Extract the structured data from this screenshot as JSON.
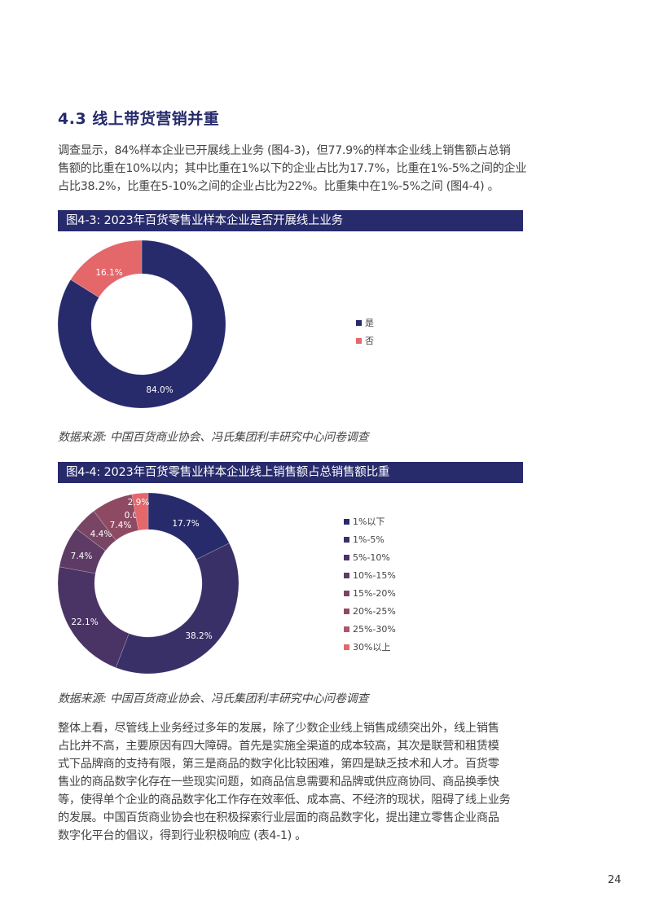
{
  "section": {
    "title": "4.3 线上带货营销并重",
    "intro_lines": [
      "调查显示，84%样本企业已开展线上业务 (图4-3)，但77.9%的样本企业线上销售额占总销",
      "售额的比重在10%以内；其中比重在1%以下的企业占比为17.7%，比重在1%-5%之间的企业",
      "占比38.2%，比重在5-10%之间的企业占比为22%。比重集中在1%-5%之间 (图4-4) 。"
    ],
    "body_lines": [
      "整体上看，尽管线上业务经过多年的发展，除了少数企业线上销售成绩突出外，线上销售",
      "占比并不高，主要原因有四大障碍。首先是实施全渠道的成本较高，其次是联营和租赁模",
      "式下品牌商的支持有限，第三是商品的数字化比较困难，第四是缺乏技术和人才。百货零",
      "售业的商品数字化存在一些现实问题，如商品信息需要和品牌或供应商协同、商品换季快",
      "等，使得单个企业的商品数字化工作存在效率低、成本高、不经济的现状，阻碍了线上业务",
      "的发展。中国百货商业协会也在积极探索行业层面的商品数字化，提出建立零售企业商品",
      "数字化平台的倡议，得到行业积极响应 (表4-1) 。"
    ]
  },
  "figures": [
    {
      "caption": "图4-3: 2023年百货零售业样本企业是否开展线上业务",
      "source": "数据来源: 中国百货商业协会、冯氏集团利丰研究中心问卷调查"
    },
    {
      "caption": "图4-4: 2023年百货零售业样本企业线上销售额占总销售额比重",
      "source": "数据来源: 中国百货商业协会、冯氏集团利丰研究中心问卷调查"
    }
  ],
  "chart_data": [
    {
      "type": "pie",
      "variant": "donut",
      "title": "图4-3: 2023年百货零售业样本企业是否开展线上业务",
      "categories": [
        "是",
        "否"
      ],
      "values": [
        84.0,
        16.1
      ],
      "labels": [
        "84.0%",
        "16.1%"
      ],
      "colors": [
        "#272a6b",
        "#e4676a"
      ],
      "legend_position": "right",
      "start_angle": "12 o'clock, clockwise"
    },
    {
      "type": "pie",
      "variant": "donut",
      "title": "图4-4: 2023年百货零售业样本企业线上销售额占总销售额比重",
      "categories": [
        "1%以下",
        "1%-5%",
        "5%-10%",
        "10%-15%",
        "15%-20%",
        "20%-25%",
        "25%-30%",
        "30%以上"
      ],
      "values": [
        17.7,
        38.2,
        22.1,
        7.4,
        4.4,
        7.4,
        0.0,
        2.9
      ],
      "labels": [
        "17.7%",
        "38.2%",
        "22.1%",
        "7.4%",
        "4.4%",
        "7.4%",
        "0.0%",
        "2.9%"
      ],
      "colors": [
        "#272a6b",
        "#3a3068",
        "#4a3365",
        "#5e3b65",
        "#784565",
        "#8f4a63",
        "#b0556a",
        "#e4676a"
      ],
      "legend_position": "right",
      "start_angle": "12 o'clock, clockwise"
    }
  ],
  "page_number": "24"
}
